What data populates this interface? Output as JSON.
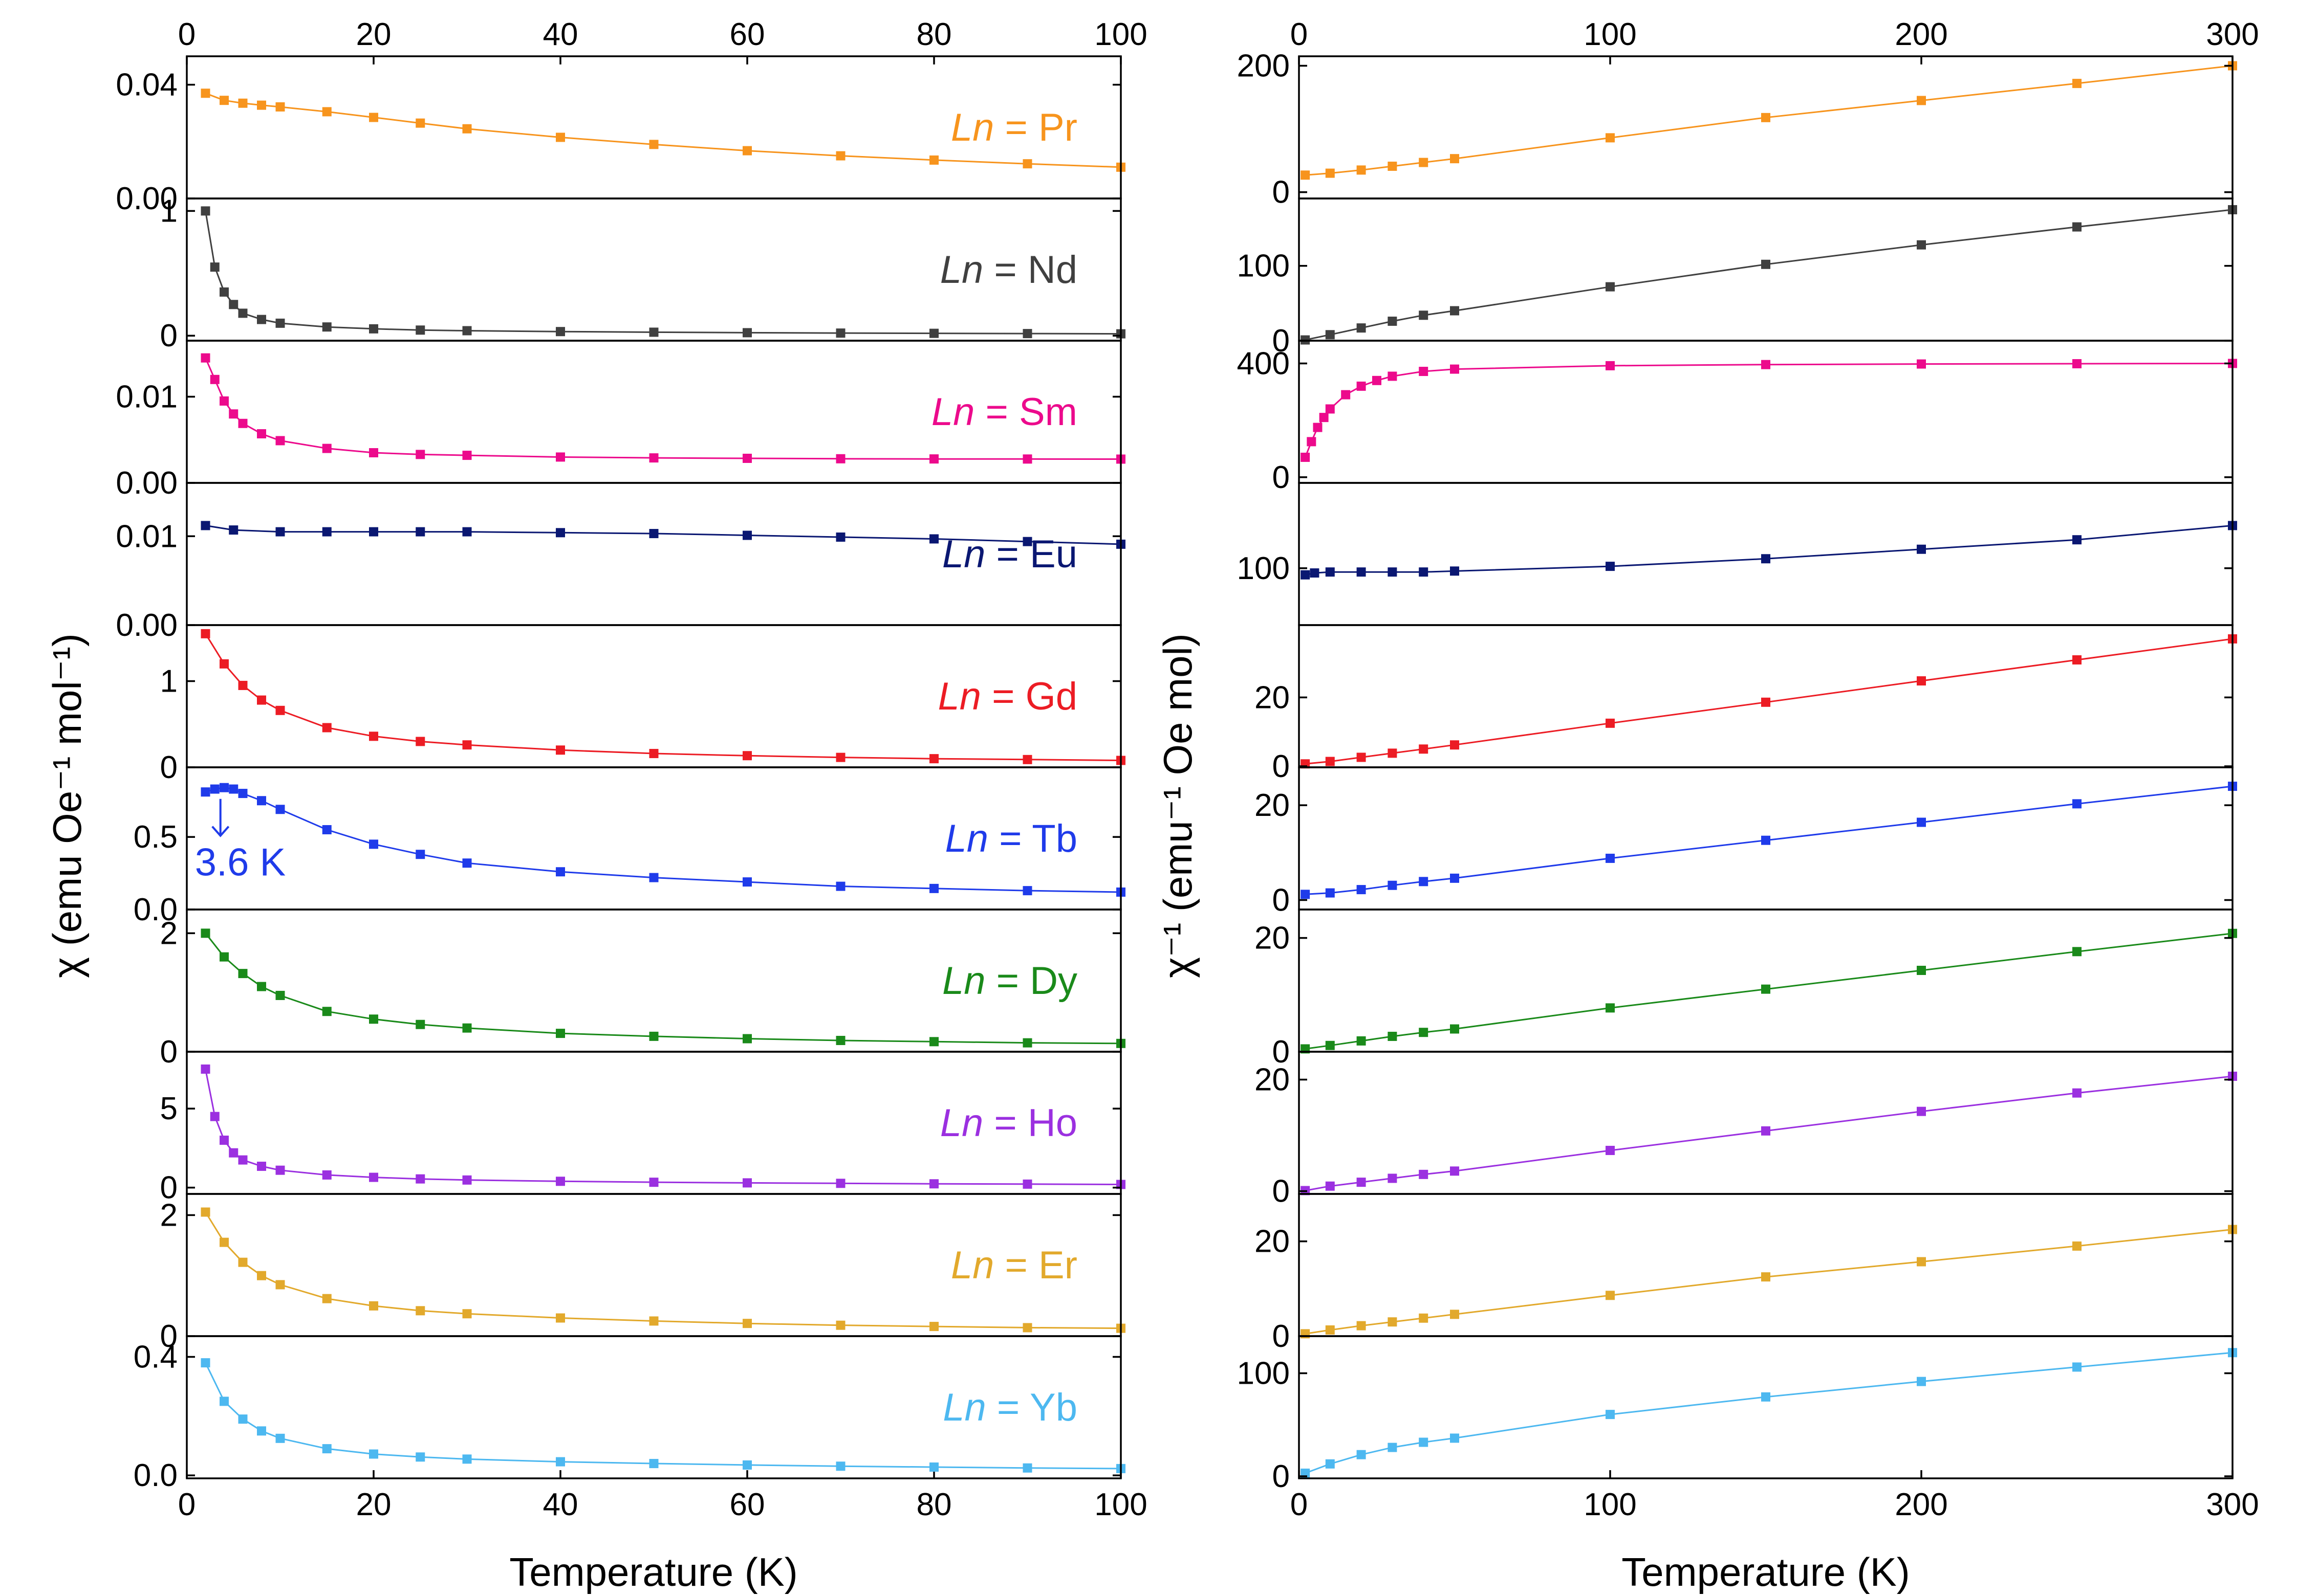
{
  "chart_data": [
    {
      "type": "scatter",
      "title": "",
      "xlabel": "Temperature (K)",
      "ylabel": "χ (emu Oe⁻¹ mol⁻¹)",
      "xlim": [
        0,
        100
      ],
      "xticks": [
        "0",
        "20",
        "40",
        "60",
        "80",
        "100"
      ],
      "shared_x": true,
      "markers": "squares joined by thin line",
      "panels": [
        {
          "label_prefix": "Ln",
          "label_suffix": " = Pr",
          "color": "#F7941D",
          "ylim": [
            0.0,
            0.05
          ],
          "yticks": [
            0.0,
            0.04
          ],
          "ytick_labels": [
            "0.00",
            "0.04"
          ],
          "x": [
            2,
            4,
            6,
            8,
            10,
            15,
            20,
            25,
            30,
            40,
            50,
            60,
            70,
            80,
            90,
            100
          ],
          "y": [
            0.037,
            0.0345,
            0.0335,
            0.0328,
            0.0322,
            0.0305,
            0.0285,
            0.0265,
            0.0245,
            0.0215,
            0.019,
            0.0168,
            0.015,
            0.0135,
            0.0122,
            0.011
          ]
        },
        {
          "label_prefix": "Ln",
          "label_suffix": " = Nd",
          "color": "#404040",
          "ylim": [
            -0.04,
            1.1
          ],
          "yticks": [
            0,
            1
          ],
          "ytick_labels": [
            "0",
            "1"
          ],
          "x": [
            2,
            3,
            4,
            5,
            6,
            8,
            10,
            15,
            20,
            25,
            30,
            40,
            50,
            60,
            70,
            80,
            90,
            100
          ],
          "y": [
            1.0,
            0.55,
            0.35,
            0.25,
            0.18,
            0.13,
            0.1,
            0.07,
            0.055,
            0.045,
            0.04,
            0.033,
            0.028,
            0.024,
            0.021,
            0.019,
            0.017,
            0.015
          ]
        },
        {
          "label_prefix": "Ln",
          "label_suffix": " = Sm",
          "color": "#EC0A8C",
          "ylim": [
            0.0,
            0.0165
          ],
          "yticks": [
            0.0,
            0.01
          ],
          "ytick_labels": [
            "0.00",
            "0.01"
          ],
          "x": [
            2,
            3,
            4,
            5,
            6,
            8,
            10,
            15,
            20,
            25,
            30,
            40,
            50,
            60,
            70,
            80,
            90,
            100
          ],
          "y": [
            0.0145,
            0.012,
            0.0095,
            0.008,
            0.0069,
            0.0057,
            0.0049,
            0.004,
            0.0035,
            0.0033,
            0.0032,
            0.003,
            0.0029,
            0.00285,
            0.0028,
            0.00278,
            0.00277,
            0.00276
          ]
        },
        {
          "label_prefix": "Ln",
          "label_suffix": " = Eu",
          "color": "#0A1772",
          "ylim": [
            0.0,
            0.016
          ],
          "yticks": [
            0.0,
            0.01
          ],
          "ytick_labels": [
            "0.00",
            "0.01"
          ],
          "x": [
            2,
            5,
            10,
            15,
            20,
            25,
            30,
            40,
            50,
            60,
            70,
            80,
            90,
            100
          ],
          "y": [
            0.0112,
            0.0107,
            0.0105,
            0.0105,
            0.0105,
            0.0105,
            0.0105,
            0.0104,
            0.0103,
            0.0101,
            0.0099,
            0.0097,
            0.0094,
            0.0091
          ]
        },
        {
          "label_prefix": "Ln",
          "label_suffix": " = Gd",
          "color": "#EC1C24",
          "ylim": [
            0,
            1.65
          ],
          "yticks": [
            0,
            1
          ],
          "ytick_labels": [
            "0",
            "1"
          ],
          "x": [
            2,
            4,
            6,
            8,
            10,
            15,
            20,
            25,
            30,
            40,
            50,
            60,
            70,
            80,
            90,
            100
          ],
          "y": [
            1.55,
            1.2,
            0.95,
            0.78,
            0.66,
            0.46,
            0.36,
            0.3,
            0.26,
            0.2,
            0.16,
            0.135,
            0.115,
            0.1,
            0.09,
            0.08
          ]
        },
        {
          "label_prefix": "Ln",
          "label_suffix": " = Tb",
          "color": "#1F3BEA",
          "ylim": [
            0,
            0.98
          ],
          "yticks": [
            0,
            0.5
          ],
          "ytick_labels": [
            "0.0",
            "0.5"
          ],
          "x": [
            2,
            3,
            4,
            5,
            6,
            8,
            10,
            15,
            20,
            25,
            30,
            40,
            50,
            60,
            70,
            80,
            90,
            100
          ],
          "y": [
            0.81,
            0.83,
            0.84,
            0.83,
            0.8,
            0.75,
            0.69,
            0.55,
            0.45,
            0.38,
            0.32,
            0.26,
            0.22,
            0.19,
            0.16,
            0.145,
            0.13,
            0.12
          ],
          "annotation": "3.6 K",
          "annotation_x": 3.6
        },
        {
          "label_prefix": "Ln",
          "label_suffix": " = Dy",
          "color": "#1A8A1A",
          "ylim": [
            0,
            2.4
          ],
          "yticks": [
            0,
            2
          ],
          "ytick_labels": [
            "0",
            "2"
          ],
          "x": [
            2,
            4,
            6,
            8,
            10,
            15,
            20,
            25,
            30,
            40,
            50,
            60,
            70,
            80,
            90,
            100
          ],
          "y": [
            2.0,
            1.6,
            1.32,
            1.1,
            0.95,
            0.68,
            0.55,
            0.46,
            0.4,
            0.31,
            0.26,
            0.22,
            0.19,
            0.17,
            0.15,
            0.14
          ]
        },
        {
          "label_prefix": "Ln",
          "label_suffix": " = Ho",
          "color": "#9B30E0",
          "ylim": [
            -0.4,
            8.6
          ],
          "yticks": [
            0,
            5
          ],
          "ytick_labels": [
            "0",
            "5"
          ],
          "x": [
            2,
            3,
            4,
            5,
            6,
            8,
            10,
            15,
            20,
            25,
            30,
            40,
            50,
            60,
            70,
            80,
            90,
            100
          ],
          "y": [
            7.5,
            4.5,
            3.0,
            2.2,
            1.75,
            1.35,
            1.1,
            0.8,
            0.65,
            0.55,
            0.48,
            0.4,
            0.34,
            0.3,
            0.27,
            0.24,
            0.22,
            0.2
          ]
        },
        {
          "label_prefix": "Ln",
          "label_suffix": " = Er",
          "color": "#E2A92C",
          "ylim": [
            0,
            2.35
          ],
          "yticks": [
            0,
            2
          ],
          "ytick_labels": [
            "0",
            "2"
          ],
          "x": [
            2,
            4,
            6,
            8,
            10,
            15,
            20,
            25,
            30,
            40,
            50,
            60,
            70,
            80,
            90,
            100
          ],
          "y": [
            2.05,
            1.55,
            1.22,
            1.0,
            0.85,
            0.62,
            0.5,
            0.42,
            0.37,
            0.3,
            0.25,
            0.21,
            0.18,
            0.16,
            0.14,
            0.13
          ]
        },
        {
          "label_prefix": "Ln",
          "label_suffix": " = Yb",
          "color": "#4DB8F0",
          "ylim": [
            -0.01,
            0.47
          ],
          "yticks": [
            0.0,
            0.4
          ],
          "ytick_labels": [
            "0.0",
            "0.4"
          ],
          "x": [
            2,
            4,
            6,
            8,
            10,
            15,
            20,
            25,
            30,
            40,
            50,
            60,
            70,
            80,
            90,
            100
          ],
          "y": [
            0.38,
            0.25,
            0.19,
            0.15,
            0.125,
            0.09,
            0.072,
            0.062,
            0.055,
            0.046,
            0.04,
            0.035,
            0.031,
            0.028,
            0.025,
            0.023
          ]
        }
      ]
    },
    {
      "type": "scatter",
      "title": "",
      "xlabel": "Temperature (K)",
      "ylabel": "χ⁻¹ (emu⁻¹ Oe mol)",
      "xlim": [
        0,
        300
      ],
      "xticks": [
        "0",
        "100",
        "200",
        "300"
      ],
      "shared_x": true,
      "panels": [
        {
          "color": "#F7941D",
          "ylim": [
            -10,
            215
          ],
          "yticks": [
            0,
            200
          ],
          "ytick_labels": [
            "0",
            "200"
          ],
          "x": [
            2,
            10,
            20,
            30,
            40,
            50,
            100,
            150,
            200,
            250,
            300
          ],
          "y": [
            27,
            30,
            35,
            41,
            47,
            53,
            86,
            118,
            145,
            172,
            200
          ]
        },
        {
          "color": "#404040",
          "ylim": [
            0,
            190
          ],
          "yticks": [
            0,
            100
          ],
          "ytick_labels": [
            "0",
            "100"
          ],
          "x": [
            2,
            10,
            20,
            30,
            40,
            50,
            100,
            150,
            200,
            250,
            300
          ],
          "y": [
            1,
            8,
            17,
            26,
            34,
            40,
            72,
            102,
            128,
            152,
            175
          ]
        },
        {
          "color": "#EC0A8C",
          "ylim": [
            -20,
            480
          ],
          "yticks": [
            0,
            400
          ],
          "ytick_labels": [
            "0",
            "400"
          ],
          "x": [
            2,
            4,
            6,
            8,
            10,
            15,
            20,
            25,
            30,
            40,
            50,
            100,
            150,
            200,
            250,
            300
          ],
          "y": [
            70,
            125,
            175,
            210,
            240,
            290,
            320,
            340,
            355,
            372,
            380,
            392,
            396,
            398,
            399,
            400
          ]
        },
        {
          "color": "#0A1772",
          "ylim": [
            40,
            190
          ],
          "yticks": [
            100
          ],
          "ytick_labels": [
            "100"
          ],
          "x": [
            2,
            5,
            10,
            20,
            30,
            40,
            50,
            100,
            150,
            200,
            250,
            300
          ],
          "y": [
            93,
            95,
            96,
            96,
            96,
            96,
            97,
            102,
            110,
            120,
            130,
            145
          ]
        },
        {
          "color": "#EC1C24",
          "ylim": [
            -0.3,
            41
          ],
          "yticks": [
            0,
            20
          ],
          "ytick_labels": [
            "0",
            "20"
          ],
          "x": [
            2,
            10,
            20,
            30,
            40,
            50,
            100,
            150,
            200,
            250,
            300
          ],
          "y": [
            0.7,
            1.4,
            2.6,
            3.8,
            5.0,
            6.2,
            12.5,
            18.6,
            24.8,
            30.9,
            37.0
          ]
        },
        {
          "color": "#1F3BEA",
          "ylim": [
            -2,
            28
          ],
          "yticks": [
            0,
            20
          ],
          "ytick_labels": [
            "0",
            "20"
          ],
          "x": [
            2,
            10,
            20,
            30,
            40,
            50,
            100,
            150,
            200,
            250,
            300
          ],
          "y": [
            1.2,
            1.5,
            2.2,
            3.1,
            3.9,
            4.6,
            8.8,
            12.6,
            16.4,
            20.3,
            24.0
          ]
        },
        {
          "color": "#1A8A1A",
          "ylim": [
            0,
            25
          ],
          "yticks": [
            0,
            20
          ],
          "ytick_labels": [
            "0",
            "20"
          ],
          "x": [
            2,
            10,
            20,
            30,
            40,
            50,
            100,
            150,
            200,
            250,
            300
          ],
          "y": [
            0.5,
            1.1,
            1.9,
            2.7,
            3.4,
            4.0,
            7.7,
            11.0,
            14.3,
            17.6,
            20.8
          ]
        },
        {
          "color": "#9B30E0",
          "ylim": [
            -0.5,
            25
          ],
          "yticks": [
            0,
            20
          ],
          "ytick_labels": [
            "0",
            "20"
          ],
          "x": [
            2,
            10,
            20,
            30,
            40,
            50,
            100,
            150,
            200,
            250,
            300
          ],
          "y": [
            0.1,
            0.9,
            1.6,
            2.3,
            3.0,
            3.6,
            7.3,
            10.8,
            14.3,
            17.6,
            20.6
          ]
        },
        {
          "color": "#E2A92C",
          "ylim": [
            0,
            30
          ],
          "yticks": [
            0,
            20
          ],
          "ytick_labels": [
            "0",
            "20"
          ],
          "x": [
            2,
            10,
            20,
            30,
            40,
            50,
            100,
            150,
            200,
            250,
            300
          ],
          "y": [
            0.5,
            1.3,
            2.2,
            3.0,
            3.8,
            4.6,
            8.6,
            12.5,
            15.7,
            19.0,
            22.5
          ]
        },
        {
          "color": "#4DB8F0",
          "ylim": [
            -2,
            136
          ],
          "yticks": [
            0,
            100
          ],
          "ytick_labels": [
            "0",
            "100"
          ],
          "x": [
            2,
            10,
            20,
            30,
            40,
            50,
            100,
            150,
            200,
            250,
            300
          ],
          "y": [
            3,
            12,
            21,
            28,
            33,
            37,
            60,
            77,
            92,
            106,
            120
          ]
        }
      ]
    }
  ]
}
